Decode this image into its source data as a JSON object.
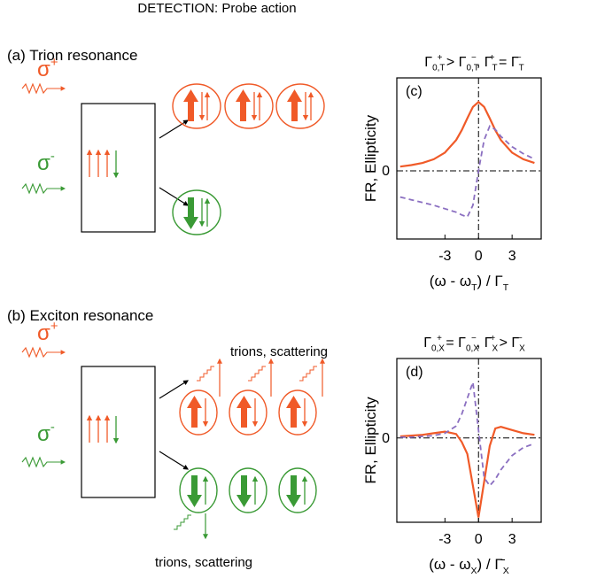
{
  "header": {
    "title": "DETECTION: Probe action"
  },
  "panel_a": {
    "title": "(a)  Trion resonance",
    "sigma_plus": {
      "base": "σ",
      "sup": "+"
    },
    "sigma_minus": {
      "base": "σ",
      "sup": "-"
    }
  },
  "panel_b": {
    "title": "(b)  Exciton resonance",
    "sigma_plus": {
      "base": "σ",
      "sup": "+"
    },
    "sigma_minus": {
      "base": "σ",
      "sup": "-"
    },
    "scatter_top": "trions, scattering",
    "scatter_bottom": "trions, scattering"
  },
  "chart_data": [
    {
      "type": "line",
      "panel": "(c)",
      "title": [
        {
          "base": "Γ",
          "sub": "0,T",
          "sup": "+"
        },
        " > ",
        {
          "base": "Γ",
          "sub": "0,T",
          "sup": "−"
        },
        ", ",
        {
          "base": "Γ",
          "sub": "T",
          "sup": "+"
        },
        " = ",
        {
          "base": "Γ",
          "sub": "T",
          "sup": "−"
        }
      ],
      "ylabel": "FR, Ellipticity",
      "xlabel": [
        "(ω - ",
        {
          "base": "ω",
          "sub": "T"
        },
        ") / ",
        {
          "base": "Γ",
          "sub": "T"
        }
      ],
      "x": [
        -7,
        -6,
        -5,
        -4,
        -3,
        -2,
        -1.5,
        -1,
        -0.5,
        0,
        0.5,
        1,
        1.5,
        2,
        3,
        4,
        5
      ],
      "series": [
        {
          "color": "#f05a28",
          "style": "solid",
          "values": [
            0.062,
            0.083,
            0.115,
            0.168,
            0.265,
            0.448,
            0.59,
            0.764,
            0.928,
            1,
            0.928,
            0.764,
            0.59,
            0.448,
            0.265,
            0.168,
            0.115
          ]
        },
        {
          "color": "#8b6fc1",
          "style": "dashed",
          "values": [
            -0.38,
            -0.42,
            -0.46,
            -0.5,
            -0.55,
            -0.6,
            -0.64,
            -0.67,
            -0.5,
            0,
            0.45,
            0.65,
            0.6,
            0.5,
            0.35,
            0.25,
            0.17
          ]
        }
      ],
      "xlim": [
        -7.3,
        5.6
      ],
      "ylim": [
        -0.99,
        1.35
      ],
      "xticks": [
        -3,
        0,
        3
      ],
      "yticks": [
        0
      ]
    },
    {
      "type": "line",
      "panel": "(d)",
      "title": [
        {
          "base": "Γ",
          "sub": "0,X",
          "sup": "+"
        },
        " = ",
        {
          "base": "Γ",
          "sub": "0,X",
          "sup": "−"
        },
        ", ",
        {
          "base": "Γ",
          "sub": "X",
          "sup": "+"
        },
        " > ",
        {
          "base": "Γ",
          "sub": "X",
          "sup": "−"
        }
      ],
      "ylabel": "FR, Ellipticity",
      "xlabel": [
        "(ω - ",
        {
          "base": "ω",
          "sub": "X"
        },
        ") / ",
        {
          "base": "Γ̄",
          "sub": "X"
        }
      ],
      "x": [
        -7,
        -6,
        -5,
        -4,
        -3,
        -2,
        -1.5,
        -1,
        -0.5,
        0,
        0.5,
        1,
        1.5,
        2,
        3,
        4,
        5
      ],
      "series": [
        {
          "color": "#f05a28",
          "style": "solid",
          "values": [
            0.02,
            0.03,
            0.04,
            0.06,
            0.08,
            0.05,
            -0.05,
            -0.2,
            -0.6,
            -1,
            -0.55,
            -0.1,
            0.12,
            0.14,
            0.1,
            0.06,
            0.04
          ]
        },
        {
          "color": "#8b6fc1",
          "style": "dashed",
          "values": [
            0.01,
            0.01,
            0.02,
            0.03,
            0.06,
            0.15,
            0.3,
            0.5,
            0.7,
            0.1,
            -0.5,
            -0.6,
            -0.52,
            -0.4,
            -0.22,
            -0.12,
            -0.07
          ]
        }
      ],
      "xlim": [
        -7.3,
        5.6
      ],
      "ylim": [
        -1.06,
        1.0
      ],
      "xticks": [
        -3,
        0,
        3
      ],
      "yticks": [
        0
      ]
    }
  ]
}
